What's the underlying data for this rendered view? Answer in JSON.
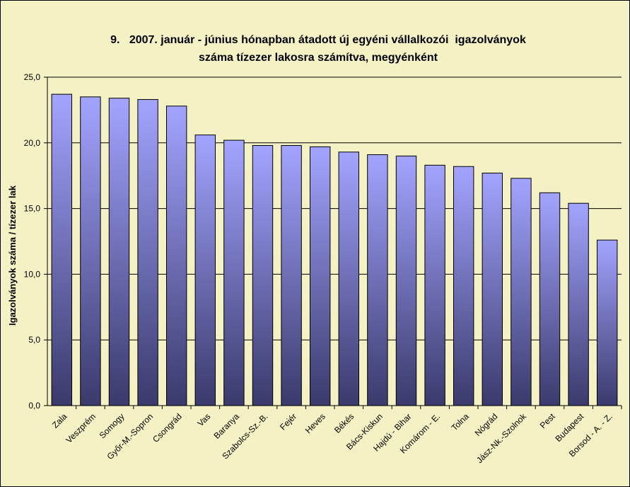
{
  "chart_data": {
    "type": "bar",
    "title_line1": "9.   2007. január - június hónapban átadott új egyéni vállalkozói  igazolványok",
    "title_line2": "száma tízezer lakosra számítva, megyénként",
    "xlabel": "",
    "ylabel": "Igazolványok száma / tízezer lak",
    "ylim": [
      0,
      25
    ],
    "yticks": [
      "0,0",
      "5,0",
      "10,0",
      "15,0",
      "20,0",
      "25,0"
    ],
    "grid": true,
    "legend": "none",
    "categories": [
      "Zala",
      "Veszprém",
      "Somogy",
      "Győr-M.-Sopron",
      "Csongrád",
      "Vas",
      "Baranya",
      "Szabolcs-Sz.-B.",
      "Fejér",
      "Heves",
      "Békés",
      "Bács-Kiskun",
      "Hajdú - Bihar",
      "Komárom - E.",
      "Tolna",
      "Nógrád",
      "Jász-Nk.-Szolnok",
      "Pest",
      "Budapest",
      "Borsod - A. - Z."
    ],
    "values": [
      23.7,
      23.5,
      23.4,
      23.3,
      22.8,
      20.6,
      20.2,
      19.8,
      19.8,
      19.7,
      19.3,
      19.1,
      19.0,
      18.3,
      18.2,
      17.7,
      17.3,
      16.2,
      15.4,
      12.6
    ],
    "colors": {
      "background": "#f4f1c4",
      "bar_top": "#a3a4ff",
      "bar_bottom": "#3a3a6c",
      "grid": "#000000"
    }
  }
}
